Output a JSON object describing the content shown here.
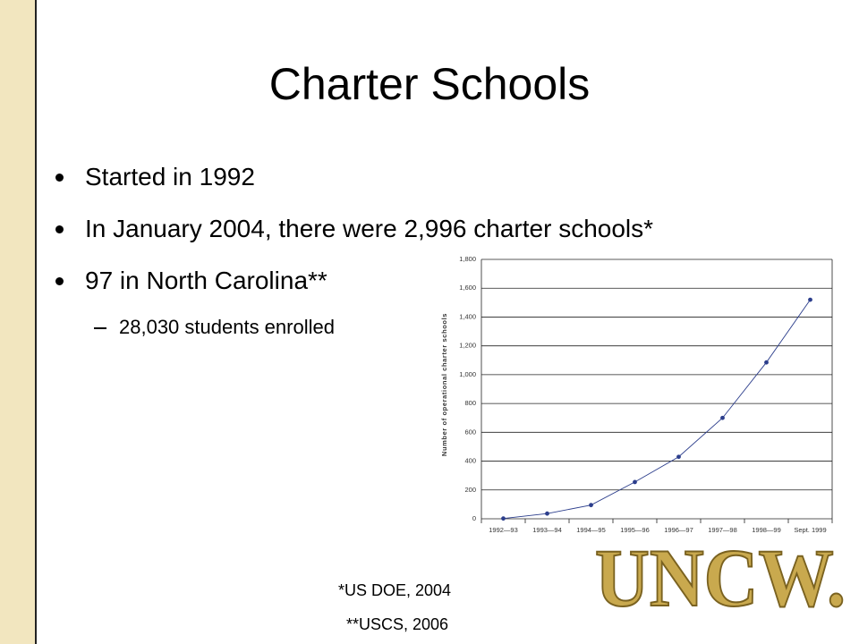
{
  "slide": {
    "title": "Charter Schools",
    "bullets": [
      {
        "text": "Started in 1992",
        "level": 1
      },
      {
        "text": "In January 2004, there were 2,996 charter schools*",
        "level": 1
      },
      {
        "text": "97 in North Carolina**",
        "level": 1
      },
      {
        "text": "28,030 students enrolled",
        "level": 2
      }
    ],
    "footnotes": [
      "*US DOE, 2004",
      "**USCS, 2006"
    ],
    "logo": "UNCW."
  },
  "chart_data": {
    "type": "line",
    "y_label": "Number of operational charter schools",
    "categories": [
      "1992—93",
      "1993—94",
      "1994—95",
      "1995—96",
      "1996—97",
      "1997—98",
      "1998—99",
      "Sept. 1999"
    ],
    "series": [
      {
        "color": "#2c3e8c",
        "values": [
          2,
          36,
          95,
          255,
          430,
          700,
          1085,
          1520
        ]
      }
    ],
    "ylim": [
      0,
      1800
    ],
    "yticks": [
      0,
      200,
      400,
      600,
      800,
      {
        "value": 1000,
        "label": "1,000"
      },
      {
        "value": 1200,
        "label": "1,200"
      },
      {
        "value": 1400,
        "label": "1,400"
      },
      {
        "value": 1600,
        "label": "1,600"
      },
      {
        "value": 1800,
        "label": "1,800"
      }
    ],
    "grid": true
  }
}
